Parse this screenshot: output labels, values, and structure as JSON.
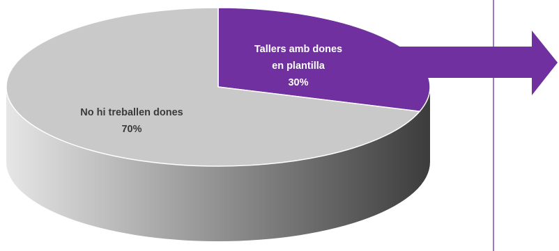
{
  "chart_data": {
    "type": "pie",
    "style": "3d",
    "slices": [
      {
        "label_lines": [
          "Tallers amb dones",
          "en plantilla"
        ],
        "percent_label": "30%",
        "value": 30,
        "color": "#7030a0",
        "text_color": "#ffffff"
      },
      {
        "label_lines": [
          "No hi treballen dones"
        ],
        "percent_label": "70%",
        "value": 70,
        "color": "#c9c9c9",
        "text_color": "#3a3a3a"
      }
    ],
    "annotations": {
      "arrow": {
        "direction": "right",
        "color": "#7030a0"
      },
      "vertical_rule": {
        "color": "#7030a0"
      }
    }
  }
}
